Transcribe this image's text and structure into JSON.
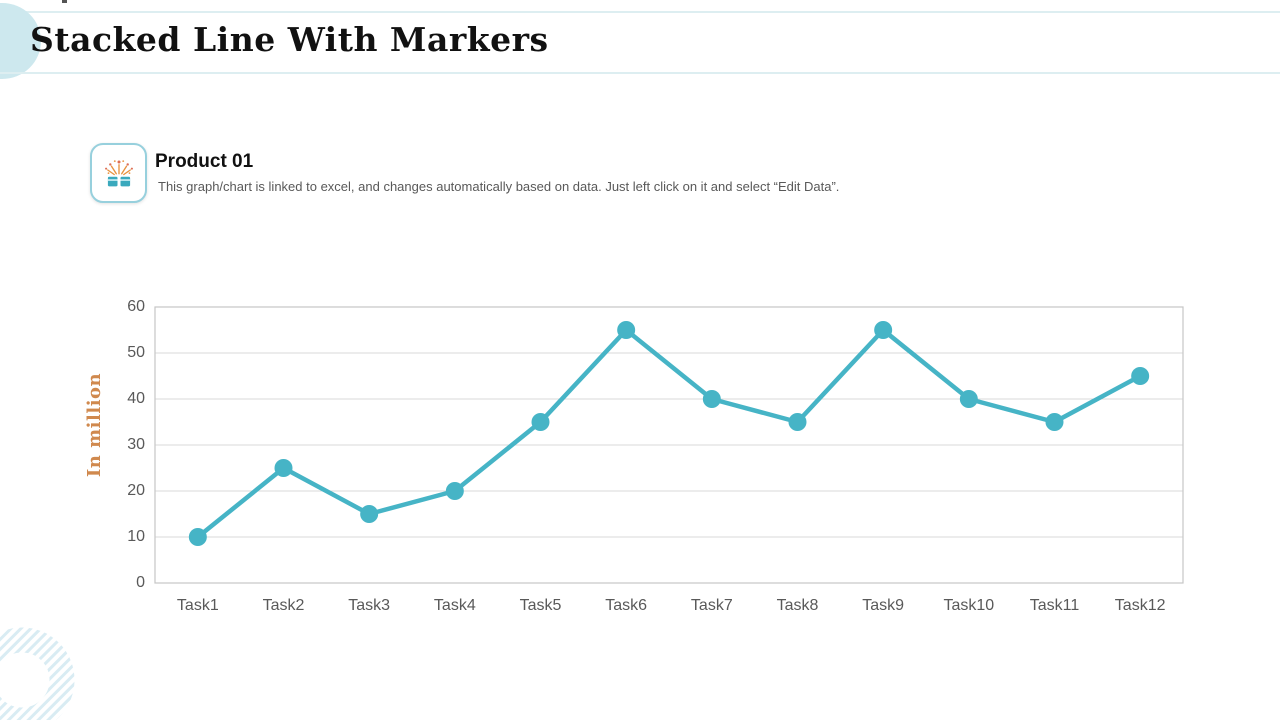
{
  "slide": {
    "title": "Stacked Line With Markers"
  },
  "product": {
    "icon": "gift-box-confetti-icon",
    "name": "Product 01",
    "description": "This graph/chart is linked to excel, and changes automatically based on data. Just left click on it and select “Edit Data”."
  },
  "chart_data": {
    "type": "line",
    "categories": [
      "Task1",
      "Task2",
      "Task3",
      "Task4",
      "Task5",
      "Task6",
      "Task7",
      "Task8",
      "Task9",
      "Task10",
      "Task11",
      "Task12"
    ],
    "series": [
      {
        "name": "Product 01",
        "values": [
          10,
          25,
          15,
          20,
          35,
          55,
          40,
          35,
          55,
          40,
          35,
          45
        ]
      }
    ],
    "title": "",
    "xlabel": "",
    "ylabel": "In million",
    "ylim": [
      0,
      60
    ],
    "yticks": [
      0,
      10,
      20,
      30,
      40,
      50,
      60
    ],
    "grid": true,
    "legend": "none",
    "marker": "circle",
    "line_color": "#46b4c6",
    "marker_color": "#46b4c6"
  },
  "colors": {
    "accent_teal": "#46b4c6",
    "axis_label_gray": "#595959",
    "ylabel_orange": "#d0894e",
    "gridline": "#dadada",
    "plot_border": "#c6c6c6",
    "decoration_blue": "#cde8ee",
    "header_line": "#ddeef1",
    "icon_border": "#97d0dd",
    "icon_confetti_orange": "#e8923f",
    "icon_confetti_red": "#dd6f55"
  }
}
